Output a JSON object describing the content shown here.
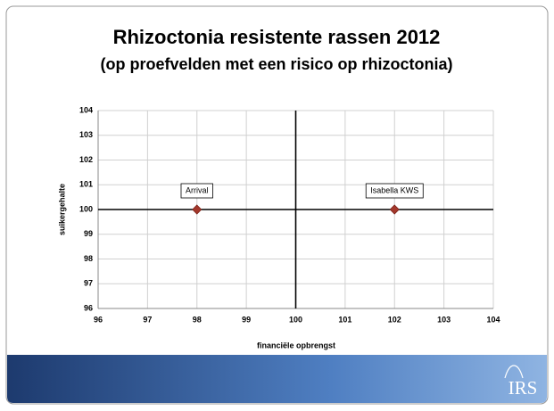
{
  "chart_data": {
    "type": "scatter",
    "title": "Rhizoctonia resistente rassen 2012",
    "subtitle": "(op proefvelden met een risico op rhizoctonia)",
    "xlabel": "financiële opbrengst",
    "ylabel": "suikergehalte",
    "x": [
      98,
      102
    ],
    "values": [
      100,
      100
    ],
    "point_labels": [
      "Arrival",
      "Isabella KWS"
    ],
    "color": "#a3372b",
    "xlim": [
      96,
      104
    ],
    "xticks": [
      96,
      97,
      98,
      99,
      100,
      101,
      102,
      103,
      104
    ],
    "ylim": [
      96,
      104
    ],
    "yticks": [
      96,
      97,
      98,
      99,
      100,
      101,
      102,
      103,
      104
    ],
    "reference_lines": {
      "x": 100,
      "y": 100
    },
    "grid": true
  },
  "logo": "IRS"
}
